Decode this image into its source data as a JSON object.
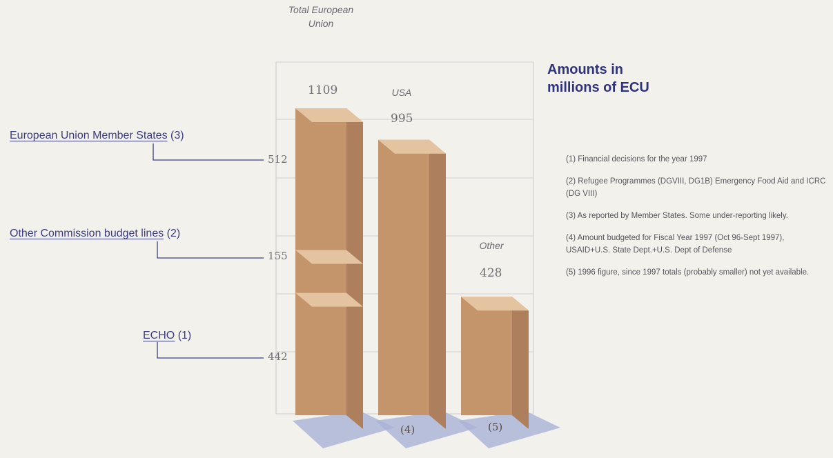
{
  "chart_data": {
    "type": "bar",
    "units_title": "Amounts in millions of ECU",
    "categories": [
      "Total European Union",
      "USA",
      "Other"
    ],
    "totals": [
      "1109",
      "995",
      "428"
    ],
    "stack_series": [
      {
        "name": "ECHO",
        "note": "(1)",
        "value": 442,
        "value_label": "442"
      },
      {
        "name": "Other Commission budget lines",
        "note": "(2)",
        "value": 155,
        "value_label": "155"
      },
      {
        "name": "European Union Member States",
        "note": "(3)",
        "value": 512,
        "value_label": "512"
      }
    ],
    "values": [
      1109,
      995,
      428
    ],
    "bar_notes": [
      "",
      "(4)",
      "(5)"
    ],
    "ylim": [
      0,
      1150
    ],
    "grid": true,
    "colors": {
      "front": "#c4956a",
      "top": "#e3c3a0",
      "side": "#ad7f5c",
      "shadow": "#a9b3d6",
      "series_label": "#3a3c84",
      "title": "#2f3280"
    },
    "notes": [
      "(1) Financial decisions for the year 1997",
      "(2) Refugee Programmes (DGVIII, DG1B) Emergency Food Aid and ICRC (DG VIII)",
      "(3) As reported by Member States. Some under-reporting likely.",
      "(4) Amount budgeted for Fiscal Year 1997 (Oct 96-Sept 1997), USAID+U.S. State Dept.+U.S. Dept of Defense",
      "(5) 1996 figure, since 1997 totals (probably smaller) not yet available."
    ]
  }
}
